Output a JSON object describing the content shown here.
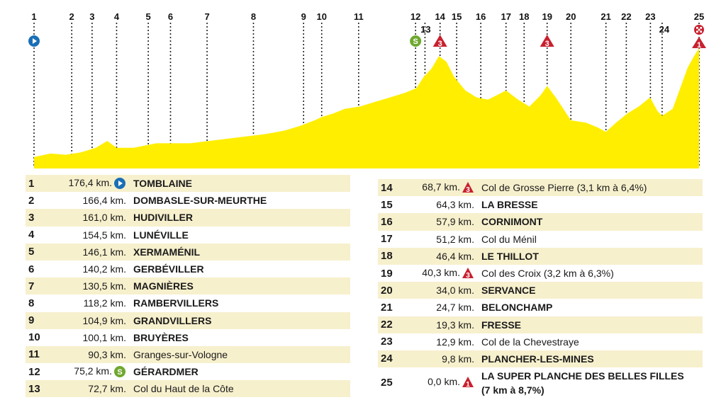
{
  "stage_markers": [
    {
      "n": "1",
      "km": 176.4
    },
    {
      "n": "2",
      "km": 166.4
    },
    {
      "n": "3",
      "km": 161.0
    },
    {
      "n": "4",
      "km": 154.5
    },
    {
      "n": "5",
      "km": 146.1
    },
    {
      "n": "6",
      "km": 140.2
    },
    {
      "n": "7",
      "km": 130.5
    },
    {
      "n": "8",
      "km": 118.2
    },
    {
      "n": "9",
      "km": 104.9
    },
    {
      "n": "10",
      "km": 100.1
    },
    {
      "n": "11",
      "km": 90.3
    },
    {
      "n": "12",
      "km": 75.2
    },
    {
      "n": "13",
      "km": 72.7
    },
    {
      "n": "14",
      "km": 68.7
    },
    {
      "n": "15",
      "km": 64.3
    },
    {
      "n": "16",
      "km": 57.9
    },
    {
      "n": "17",
      "km": 51.2
    },
    {
      "n": "18",
      "km": 46.4
    },
    {
      "n": "19",
      "km": 40.3
    },
    {
      "n": "20",
      "km": 34.0
    },
    {
      "n": "21",
      "km": 24.7
    },
    {
      "n": "22",
      "km": 19.3
    },
    {
      "n": "23",
      "km": 12.9
    },
    {
      "n": "24",
      "km": 9.8
    },
    {
      "n": "25",
      "km": 0.0
    }
  ],
  "chart_data": {
    "type": "area",
    "x_direction": "km remaining (176.4 to 0)",
    "fill_color": "#ffee00",
    "profile": [
      [
        176.4,
        0.1
      ],
      [
        172,
        0.13
      ],
      [
        168,
        0.12
      ],
      [
        164,
        0.14
      ],
      [
        160,
        0.18
      ],
      [
        157,
        0.24
      ],
      [
        154.5,
        0.18
      ],
      [
        150,
        0.18
      ],
      [
        147,
        0.2
      ],
      [
        144,
        0.22
      ],
      [
        140,
        0.22
      ],
      [
        135,
        0.22
      ],
      [
        130,
        0.24
      ],
      [
        125,
        0.26
      ],
      [
        120,
        0.28
      ],
      [
        115,
        0.3
      ],
      [
        110,
        0.33
      ],
      [
        106,
        0.37
      ],
      [
        102,
        0.42
      ],
      [
        100,
        0.45
      ],
      [
        97,
        0.48
      ],
      [
        94,
        0.52
      ],
      [
        90,
        0.54
      ],
      [
        86,
        0.58
      ],
      [
        82,
        0.62
      ],
      [
        78,
        0.66
      ],
      [
        75,
        0.7
      ],
      [
        73,
        0.8
      ],
      [
        71,
        0.87
      ],
      [
        69,
        0.98
      ],
      [
        67,
        0.93
      ],
      [
        65,
        0.8
      ],
      [
        62,
        0.68
      ],
      [
        59,
        0.62
      ],
      [
        56,
        0.6
      ],
      [
        53,
        0.65
      ],
      [
        51.2,
        0.68
      ],
      [
        48,
        0.6
      ],
      [
        45,
        0.54
      ],
      [
        42,
        0.64
      ],
      [
        40.3,
        0.72
      ],
      [
        38,
        0.62
      ],
      [
        36,
        0.52
      ],
      [
        34,
        0.42
      ],
      [
        30,
        0.4
      ],
      [
        27,
        0.36
      ],
      [
        24.7,
        0.32
      ],
      [
        22,
        0.4
      ],
      [
        19,
        0.48
      ],
      [
        16,
        0.54
      ],
      [
        13,
        0.62
      ],
      [
        11,
        0.5
      ],
      [
        9.8,
        0.46
      ],
      [
        7,
        0.52
      ],
      [
        5,
        0.7
      ],
      [
        3,
        0.88
      ],
      [
        1.5,
        0.97
      ],
      [
        0,
        1.05
      ]
    ]
  },
  "colors": {
    "profile_fill": "#ffee00",
    "start_blue": "#1a6fb6",
    "sprint_green": "#6fa82e",
    "climb_red": "#c8202f",
    "row_shade": "#f7f0cd"
  },
  "waypoints": [
    {
      "n": "1",
      "km": "176,4 km.",
      "icon": "start",
      "name": "TOMBLAINE"
    },
    {
      "n": "2",
      "km": "166,4 km.",
      "icon": "",
      "name": "DOMBASLE-SUR-MEURTHE"
    },
    {
      "n": "3",
      "km": "161,0 km.",
      "icon": "",
      "name": "HUDIVILLER"
    },
    {
      "n": "4",
      "km": "154,5 km.",
      "icon": "",
      "name": "LUNÉVILLE"
    },
    {
      "n": "5",
      "km": "146,1 km.",
      "icon": "",
      "name": "XERMAMÉNIL"
    },
    {
      "n": "6",
      "km": "140,2 km.",
      "icon": "",
      "name": "GERBÉVILLER"
    },
    {
      "n": "7",
      "km": "130,5 km.",
      "icon": "",
      "name": "MAGNIÈRES"
    },
    {
      "n": "8",
      "km": "118,2 km.",
      "icon": "",
      "name": "RAMBERVILLERS"
    },
    {
      "n": "9",
      "km": "104,9 km.",
      "icon": "",
      "name": "GRANDVILLERS"
    },
    {
      "n": "10",
      "km": "100,1 km.",
      "icon": "",
      "name": "BRUYÈRES"
    },
    {
      "n": "11",
      "km": "90,3 km.",
      "icon": "",
      "name": "Granges-sur-Vologne"
    },
    {
      "n": "12",
      "km": "75,2 km.",
      "icon": "sprint",
      "name": "GÉRARDMER"
    },
    {
      "n": "13",
      "km": "72,7 km.",
      "icon": "",
      "name": "Col du Haut de la Côte"
    },
    {
      "n": "14",
      "km": "68,7 km.",
      "icon": "climb-3",
      "name": "Col de Grosse Pierre (3,1 km à 6,4%)"
    },
    {
      "n": "15",
      "km": "64,3 km.",
      "icon": "",
      "name": "LA BRESSE"
    },
    {
      "n": "16",
      "km": "57,9 km.",
      "icon": "",
      "name": "CORNIMONT"
    },
    {
      "n": "17",
      "km": "51,2 km.",
      "icon": "",
      "name": "Col du Ménil"
    },
    {
      "n": "18",
      "km": "46,4 km.",
      "icon": "",
      "name": "LE THILLOT"
    },
    {
      "n": "19",
      "km": "40,3 km.",
      "icon": "climb-3",
      "name": "Col des Croix (3,2 km à 6,3%)"
    },
    {
      "n": "20",
      "km": "34,0 km.",
      "icon": "",
      "name": "SERVANCE"
    },
    {
      "n": "21",
      "km": "24,7 km.",
      "icon": "",
      "name": "BELONCHAMP"
    },
    {
      "n": "22",
      "km": "19,3 km.",
      "icon": "",
      "name": "FRESSE"
    },
    {
      "n": "23",
      "km": "12,9 km.",
      "icon": "",
      "name": "Col de la Chevestraye"
    },
    {
      "n": "24",
      "km": "9,8 km.",
      "icon": "",
      "name": "PLANCHER-LES-MINES"
    },
    {
      "n": "25",
      "km": "0,0 km.",
      "icon": "climb-1",
      "name": "LA SUPER PLANCHE DES BELLES FILLES",
      "name2": "(7 km à 8,7%)"
    }
  ]
}
